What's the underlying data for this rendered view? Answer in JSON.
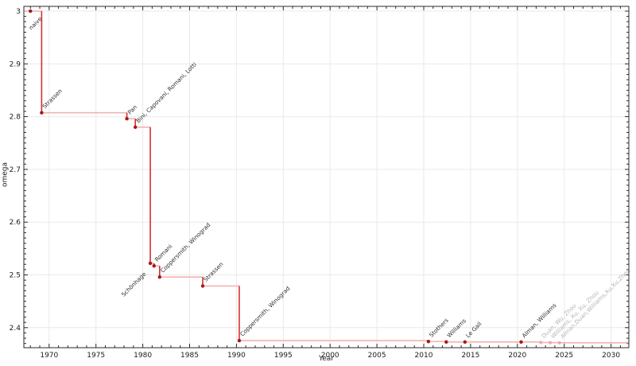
{
  "chart_data": {
    "type": "line",
    "title": "",
    "xlabel": "Year",
    "ylabel": "omega",
    "step_style": "post",
    "grid": true,
    "legend": false,
    "xlim": [
      1967.3,
      2031.9
    ],
    "ylim": [
      2.362,
      3.009
    ],
    "x_ticks": [
      1970,
      1975,
      1980,
      1985,
      1990,
      1995,
      2000,
      2005,
      2010,
      2015,
      2020,
      2025,
      2030
    ],
    "x_tick_labels": [
      "1970",
      "1975",
      "1980",
      "1985",
      "1990",
      "1995",
      "2000",
      "2005",
      "2010",
      "2015",
      "2020",
      "2025",
      "2030"
    ],
    "y_ticks": [
      2.4,
      2.5,
      2.6,
      2.7,
      2.8,
      2.9,
      3.0
    ],
    "y_tick_labels": [
      "2.4",
      "2.5",
      "2.6",
      "2.7",
      "2.8",
      "2.9",
      "3"
    ],
    "x_minor_step": 1,
    "y_minor_step": 0.01,
    "series": [
      {
        "points": [
          {
            "year": 1968.0,
            "omega": 3.0,
            "label": "naive",
            "published": true,
            "label_side": "down-right"
          },
          {
            "year": 1969.2,
            "omega": 2.8074,
            "label": "Strassen",
            "published": true,
            "label_side": "up"
          },
          {
            "year": 1978.3,
            "omega": 2.796,
            "label": "Pan",
            "published": true,
            "label_side": "up"
          },
          {
            "year": 1979.2,
            "omega": 2.78,
            "label": "Bini, Capovani, Romani, Lotti",
            "published": true,
            "label_side": "up"
          },
          {
            "year": 1980.8,
            "omega": 2.522,
            "label": "Schönhage",
            "published": true,
            "label_side": "down-left"
          },
          {
            "year": 1981.2,
            "omega": 2.517,
            "label": "Romani",
            "published": true,
            "label_side": "up"
          },
          {
            "year": 1981.8,
            "omega": 2.496,
            "label": "Coppersmith, Winograd",
            "published": true,
            "label_side": "up"
          },
          {
            "year": 1986.4,
            "omega": 2.479,
            "label": "Strassen",
            "published": true,
            "label_side": "up"
          },
          {
            "year": 1990.3,
            "omega": 2.3755,
            "label": "Coppersmith, Winograd",
            "published": true,
            "label_side": "up"
          },
          {
            "year": 2010.5,
            "omega": 2.3737,
            "label": "Stothers",
            "published": true,
            "label_side": "up"
          },
          {
            "year": 2012.4,
            "omega": 2.3729,
            "label": "Williams",
            "published": true,
            "label_side": "up"
          },
          {
            "year": 2014.4,
            "omega": 2.3728,
            "label": "Le Gall",
            "published": true,
            "label_side": "up"
          },
          {
            "year": 2020.4,
            "omega": 2.3728,
            "label": "Alman, Williams",
            "published": true,
            "label_side": "up"
          },
          {
            "year": 2022.5,
            "omega": 2.3719,
            "label": "Duan, Wu, Zhou",
            "published": false,
            "label_side": "up"
          },
          {
            "year": 2023.5,
            "omega": 2.3716,
            "label": "Williams, Xu, Xu, Zhou",
            "published": false,
            "label_side": "up"
          },
          {
            "year": 2024.5,
            "omega": 2.3713,
            "label": "Alman,Duan,Williams,Xu,Xu,Zhou",
            "published": false,
            "label_side": "up"
          }
        ]
      }
    ],
    "colors": {
      "line_horizontal": "#f2b2b2",
      "line_vertical": "#d62f2f",
      "marker_published": "#a51717",
      "marker_unpublished": "#f0a6a6",
      "label_published": "#2e2e2e",
      "label_unpublished": "#b5b5b5",
      "grid": "#e9e9e9",
      "spine": "#2a2a2a",
      "tick": "#2a2a2a",
      "tick_label": "#1a1a1a",
      "background": "#ffffff"
    }
  }
}
